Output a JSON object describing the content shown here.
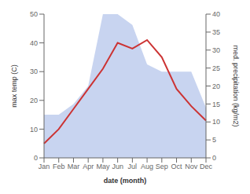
{
  "chart_data": {
    "type": "line",
    "x_label": "date (month)",
    "y_label": "max temp (C)",
    "y2_label": "med. precipitation (kg/m2)",
    "categories": [
      "Jan",
      "Feb",
      "Mar",
      "Apr",
      "May",
      "Jun",
      "Jul",
      "Aug",
      "Sep",
      "Oct",
      "Nov",
      "Dec"
    ],
    "series": [
      {
        "type": "area",
        "axis": "y2",
        "color": "#c8d4f0",
        "values": [
          12,
          12,
          15,
          20,
          40,
          40,
          37,
          26,
          24,
          24,
          24,
          14
        ]
      },
      {
        "type": "line",
        "color": "#cc3333",
        "values": [
          5,
          10,
          17,
          24,
          31,
          40,
          38,
          41,
          35,
          24,
          18,
          13
        ]
      }
    ],
    "ylim": [
      0,
      50
    ],
    "yticks": [
      0,
      10,
      20,
      30,
      40,
      50
    ],
    "y2lim": [
      0,
      40
    ],
    "y2ticks": [
      0,
      5,
      10,
      15,
      20,
      25,
      30,
      35,
      40
    ],
    "grid": false
  }
}
